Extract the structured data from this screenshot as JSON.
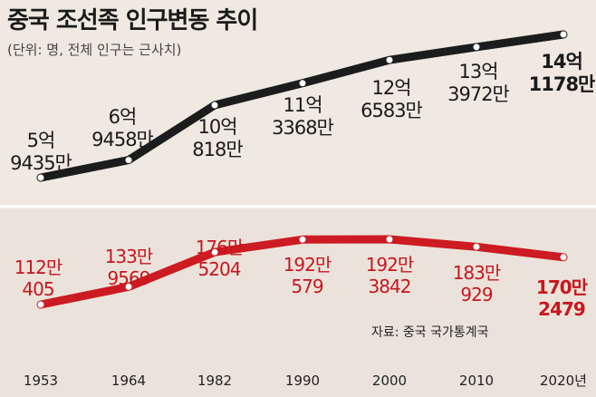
{
  "title": "중국 조선족 인구변동 추이",
  "subtitle": "(단위: 명, 전체 인구는 근사치)",
  "source": "자료: 중국 국가통계국",
  "chart_data": [
    {
      "type": "line",
      "title": "",
      "x": [
        "1953",
        "1964",
        "1982",
        "1990",
        "2000",
        "2010",
        "2020년"
      ],
      "series": [
        {
          "values": [
            594350000,
            694580000,
            1008180000,
            1133680000,
            1265830000,
            1339720000,
            1411780000
          ],
          "labels": [
            [
              "5억",
              "9435만"
            ],
            [
              "6억",
              "9458만"
            ],
            [
              "10억",
              "818만"
            ],
            [
              "11억",
              "3368만"
            ],
            [
              "12억",
              "6583만"
            ],
            [
              "13억",
              "3972만"
            ],
            [
              "14억",
              "1178만"
            ]
          ],
          "color": "#1c1c1c"
        }
      ]
    },
    {
      "type": "line",
      "title": "",
      "x": [
        "1953",
        "1964",
        "1982",
        "1990",
        "2000",
        "2010",
        "2020년"
      ],
      "series": [
        {
          "values": [
            1120405,
            1339569,
            1765204,
            1920579,
            1923842,
            1830929,
            1702479
          ],
          "labels": [
            [
              "112만",
              "405"
            ],
            [
              "133만",
              "9569"
            ],
            [
              "176만",
              "5204"
            ],
            [
              "192만",
              "579"
            ],
            [
              "192만",
              "3842"
            ],
            [
              "183만",
              "929"
            ],
            [
              "170만",
              "2479"
            ]
          ],
          "color": "#cc1b22"
        }
      ]
    }
  ]
}
